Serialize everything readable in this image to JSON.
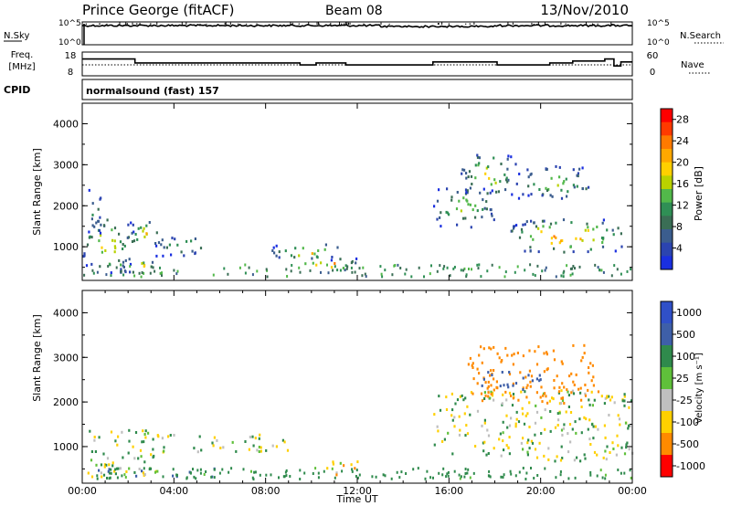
{
  "header": {
    "station": "Prince George (fitACF)",
    "beam": "Beam 08",
    "date": "13/Nov/2010"
  },
  "noise_panel": {
    "left_label": "N.Sky",
    "left_ticks": [
      "10^5",
      "10^0"
    ],
    "right_label": "N.Search",
    "right_ticks": [
      "10^5",
      "10^0"
    ]
  },
  "freq_panel": {
    "left_label_1": "Freq.",
    "left_label_2": "[MHz]",
    "left_ticks": [
      "18",
      "8"
    ],
    "right_label": "Nave",
    "right_ticks": [
      "60",
      "0"
    ],
    "cpid_label": "CPID",
    "cpid_text": "normalsound (fast) 157"
  },
  "power_panel": {
    "ylabel": "Slant Range [km]",
    "yticks": [
      "4000",
      "3000",
      "2000",
      "1000"
    ],
    "colorbar_label": "Power [dB]",
    "colorbar_ticks": [
      "28",
      "24",
      "20",
      "16",
      "12",
      "8",
      "4"
    ],
    "colorbar_colors": [
      "#ff0000",
      "#ff3a00",
      "#ff7a00",
      "#ffa800",
      "#ffd000",
      "#b9d200",
      "#52b84a",
      "#2f8f55",
      "#3a6e55",
      "#3b5d8e",
      "#2b44b0",
      "#1a2fe0"
    ]
  },
  "velocity_panel": {
    "ylabel": "Slant Range [km]",
    "yticks": [
      "4000",
      "3000",
      "2000",
      "1000"
    ],
    "colorbar_label": "Velocity [m s⁻¹]",
    "colorbar_ticks": [
      "1000",
      "500",
      "100",
      "25",
      "-25",
      "-100",
      "-500",
      "-1000"
    ],
    "colorbar_colors": [
      "#3050c8",
      "#3e5fa8",
      "#2f8a4c",
      "#5fc03a",
      "#bfbfbf",
      "#ffd000",
      "#ff8a00",
      "#ff0000"
    ]
  },
  "xaxis": {
    "ticks": [
      "00:00",
      "04:00",
      "08:00",
      "12:00",
      "16:00",
      "20:00",
      "00:00"
    ],
    "label": "Time UT"
  },
  "chart_data": {
    "type": "heatmap",
    "title": "Prince George (fitACF)",
    "subtitle": "Beam 08  13/Nov/2010",
    "xlabel": "Time UT",
    "ylabel": "Slant Range [km]",
    "x_range_hours": [
      0,
      24
    ],
    "y_range_km": [
      180,
      4500
    ],
    "power_range_db": [
      0,
      30
    ],
    "velocity_range_ms": [
      -1000,
      1000
    ],
    "frequency_mhz": {
      "times_hr": [
        0,
        2,
        2.3,
        9.5,
        10.2,
        11.5,
        15.3,
        18.1,
        20.4,
        21.4,
        22.8,
        23.2,
        23.5,
        24
      ],
      "values": [
        15.5,
        15.5,
        13.5,
        12.5,
        13.5,
        12.5,
        14,
        12.5,
        13.5,
        14.5,
        15.5,
        12,
        14,
        11
      ]
    },
    "power_regions": [
      {
        "t0": 0.0,
        "t1": 2.2,
        "r0": 400,
        "r1": 1700,
        "peak_db": 22
      },
      {
        "t0": 0.2,
        "t1": 0.8,
        "r0": 1300,
        "r1": 2500,
        "peak_db": 12
      },
      {
        "t0": 1.2,
        "t1": 3.2,
        "r0": 400,
        "r1": 700,
        "peak_db": 26
      },
      {
        "t0": 2.0,
        "t1": 3.3,
        "r0": 1000,
        "r1": 1700,
        "peak_db": 22
      },
      {
        "t0": 3.2,
        "t1": 5.5,
        "r0": 800,
        "r1": 1300,
        "peak_db": 14
      },
      {
        "t0": 8.2,
        "t1": 11.3,
        "r0": 700,
        "r1": 1100,
        "peak_db": 22
      },
      {
        "t0": 9.3,
        "t1": 12.0,
        "r0": 450,
        "r1": 750,
        "peak_db": 28
      },
      {
        "t0": 15.3,
        "t1": 18.0,
        "r0": 1500,
        "r1": 2500,
        "peak_db": 18
      },
      {
        "t0": 16.5,
        "t1": 19.0,
        "r0": 2300,
        "r1": 3300,
        "peak_db": 20
      },
      {
        "t0": 18.6,
        "t1": 23.5,
        "r0": 900,
        "r1": 1700,
        "peak_db": 28
      },
      {
        "t0": 19.0,
        "t1": 22.2,
        "r0": 2200,
        "r1": 3000,
        "peak_db": 18
      }
    ],
    "velocity_regions": [
      {
        "t0": 0.2,
        "t1": 3.5,
        "r0": 350,
        "r1": 1400,
        "velocity": 0
      },
      {
        "t0": 0.5,
        "t1": 6.0,
        "r0": 350,
        "r1": 550,
        "velocity": 60
      },
      {
        "t0": 3.0,
        "t1": 9.0,
        "r0": 900,
        "r1": 1300,
        "velocity": 0
      },
      {
        "t0": 10.5,
        "t1": 12.2,
        "r0": 350,
        "r1": 700,
        "velocity": -80
      },
      {
        "t0": 15.3,
        "t1": 24.0,
        "r0": 700,
        "r1": 2300,
        "velocity": 0
      },
      {
        "t0": 16.8,
        "t1": 22.5,
        "r0": 2000,
        "r1": 3300,
        "velocity": -300
      },
      {
        "t0": 17.0,
        "t1": 20.0,
        "r0": 2300,
        "r1": 2700,
        "velocity": 300
      }
    ]
  }
}
